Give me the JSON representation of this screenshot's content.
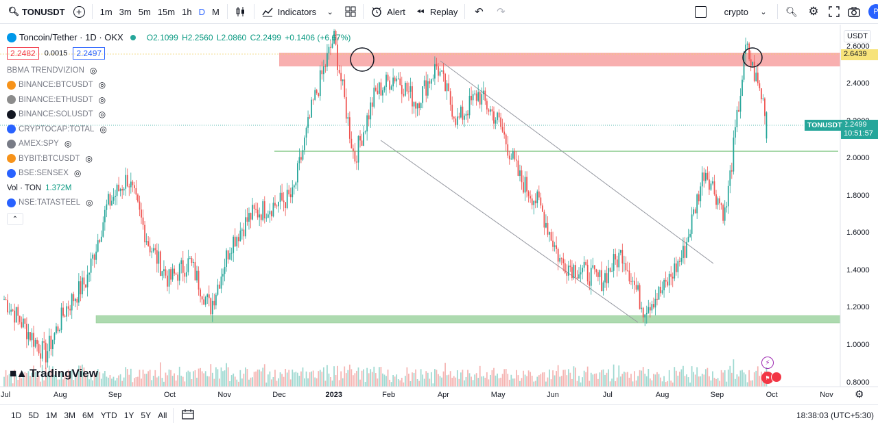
{
  "toolbar": {
    "symbol": "TONUSDT",
    "intervals": [
      "1m",
      "3m",
      "5m",
      "15m",
      "1h",
      "D",
      "M"
    ],
    "active_interval": "D",
    "indicators_label": "Indicators",
    "alert_label": "Alert",
    "replay_label": "Replay",
    "layout_name": "crypto",
    "avatar_letter": "P"
  },
  "legend": {
    "title": "Toncoin/Tether · 1D · OKX",
    "o": "O2.1099",
    "h": "H2.2560",
    "l": "L2.0860",
    "c": "C2.2499",
    "change": "+0.1406 (+6.67%)",
    "bid": "2.2482",
    "spread": "0.0015",
    "ask": "2.2497",
    "indicators": [
      {
        "label": "BBMA TRENDVIZION",
        "color": "#787b86",
        "icon": "none"
      },
      {
        "label": "BINANCE:BTCUSDT",
        "color": "#f7931a",
        "icon": "btc-icon"
      },
      {
        "label": "BINANCE:ETHUSDT",
        "color": "#8c8c8c",
        "icon": "eth-icon"
      },
      {
        "label": "BINANCE:SOLUSDT",
        "color": "#131722",
        "icon": "sol-icon"
      },
      {
        "label": "CRYPTOCAP:TOTAL",
        "color": "#2962ff",
        "icon": "total-icon"
      },
      {
        "label": "AMEX:SPY",
        "color": "#787b86",
        "icon": "spy-icon"
      },
      {
        "label": "BYBIT:BTCUSDT",
        "color": "#f7931a",
        "icon": "btc-icon"
      },
      {
        "label": "BSE:SENSEX",
        "color": "#2962ff",
        "icon": "bse-icon"
      }
    ],
    "volume_label": "Vol · TON",
    "volume_value": "1.372M",
    "last_indicator": {
      "label": "NSE:TATASTEEL",
      "color": "#2962ff",
      "icon": "nse-icon"
    }
  },
  "scale": {
    "currency": "USDT",
    "ticks": [
      "2.6000",
      "2.4000",
      "2.2000",
      "2.0000",
      "1.8000",
      "1.6000",
      "1.4000",
      "1.2000",
      "1.0000",
      "0.8000"
    ],
    "high_tag": "2.6439",
    "symbol_tag": "TONUSDT",
    "last_price_tag": "2.2499",
    "countdown": "10:51:57"
  },
  "time_axis": {
    "labels": [
      "Jul",
      "Aug",
      "Sep",
      "Oct",
      "Nov",
      "Dec",
      "2023",
      "Feb",
      "Apr",
      "May",
      "Jun",
      "Jul",
      "Aug",
      "Sep",
      "Oct",
      "Nov"
    ]
  },
  "bottom": {
    "ranges": [
      "1D",
      "5D",
      "1M",
      "3M",
      "6M",
      "YTD",
      "1Y",
      "5Y",
      "All"
    ],
    "clock": "18:38:03 (UTC+5:30)"
  },
  "watermark": "TradingView",
  "colors": {
    "up": "#26a69a",
    "down": "#ef5350",
    "accent": "#2962ff",
    "resistance_zone": "#f7a1a1",
    "support_zone": "#a5d6a7"
  },
  "chart_data": {
    "type": "candlestick",
    "title": "Toncoin/Tether · 1D · OKX",
    "ylim": [
      0.78,
      2.72
    ],
    "close_path": [
      [
        "Jul",
        1.25
      ],
      [
        "Jul",
        1.1
      ],
      [
        "Aug",
        0.95
      ],
      [
        "Aug",
        1.2
      ],
      [
        "Aug",
        1.35
      ],
      [
        "Sep",
        1.75
      ],
      [
        "Sep",
        1.9
      ],
      [
        "Sep",
        1.55
      ],
      [
        "Oct",
        1.35
      ],
      [
        "Oct",
        1.45
      ],
      [
        "Oct",
        1.2
      ],
      [
        "Nov",
        1.55
      ],
      [
        "Nov",
        1.7
      ],
      [
        "Nov",
        1.75
      ],
      [
        "Dec",
        1.8
      ],
      [
        "Dec",
        2.3
      ],
      [
        "Dec",
        2.65
      ],
      [
        "2023",
        2.0
      ],
      [
        "2023",
        2.35
      ],
      [
        "Feb",
        2.45
      ],
      [
        "Feb",
        2.3
      ],
      [
        "Feb",
        2.5
      ],
      [
        "Apr",
        2.2
      ],
      [
        "Apr",
        2.35
      ],
      [
        "May",
        2.2
      ],
      [
        "May",
        1.9
      ],
      [
        "Jun",
        1.75
      ],
      [
        "Jun",
        1.45
      ],
      [
        "Jul",
        1.4
      ],
      [
        "Jul",
        1.35
      ],
      [
        "Aug",
        1.5
      ],
      [
        "Aug",
        1.2
      ],
      [
        "Aug",
        1.3
      ],
      [
        "Sep",
        1.5
      ],
      [
        "Sep",
        1.95
      ],
      [
        "Sep",
        1.7
      ],
      [
        "Sep",
        2.6
      ],
      [
        "Sep",
        2.25
      ]
    ],
    "last": {
      "open": 2.1099,
      "high": 2.256,
      "low": 2.086,
      "close": 2.2499
    },
    "levels": {
      "resistance_zone": [
        2.58,
        2.64
      ],
      "support_zone": [
        1.14,
        1.19
      ],
      "horizontal_line": 2.1
    }
  }
}
